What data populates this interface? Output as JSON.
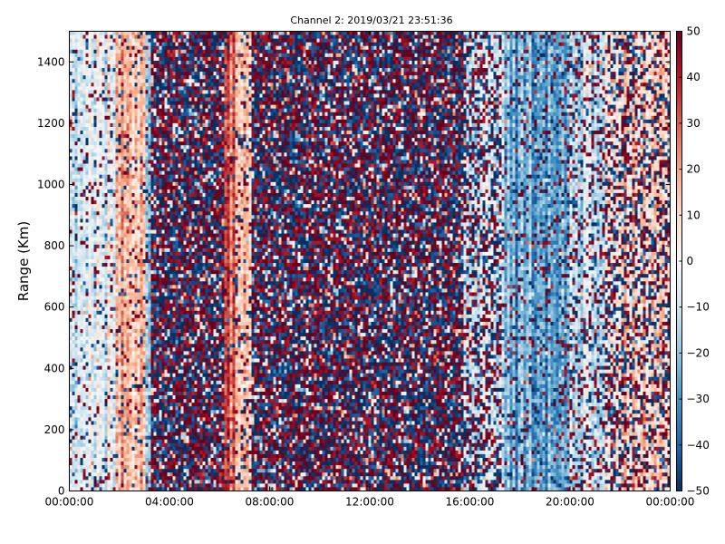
{
  "chart_data": {
    "type": "heatmap",
    "title": "Channel 2: 2019/03/21 23:51:36",
    "xlabel": "",
    "ylabel": "Range (Km)",
    "x_ticks": [
      "00:00:00",
      "04:00:00",
      "08:00:00",
      "12:00:00",
      "16:00:00",
      "20:00:00",
      "00:00:00"
    ],
    "x_range_hours": [
      0,
      24
    ],
    "y_ticks": [
      0,
      200,
      400,
      600,
      800,
      1000,
      1200,
      1400
    ],
    "ylim": [
      0,
      1500
    ],
    "colorbar": {
      "colormap": "RdBu_r",
      "vmin": -50,
      "vmax": 50,
      "ticks": [
        50,
        40,
        30,
        20,
        10,
        0,
        -10,
        -20,
        -30,
        -40,
        -50
      ],
      "colors": [
        "#053061",
        "#2166ac",
        "#4393c3",
        "#92c5de",
        "#d1e5f0",
        "#f7f7f7",
        "#fddbc7",
        "#f4a582",
        "#d6604d",
        "#b2182b",
        "#67001f"
      ]
    },
    "time_bands": [
      {
        "start_hour": 0.0,
        "end_hour": 1.9,
        "mean_value": -8,
        "noise_level": 0.15
      },
      {
        "start_hour": 1.9,
        "end_hour": 3.0,
        "mean_value": 15,
        "noise_level": 0.15
      },
      {
        "start_hour": 3.0,
        "end_hour": 3.25,
        "mean_value": -15,
        "noise_level": 0.2
      },
      {
        "start_hour": 3.25,
        "end_hour": 6.2,
        "mean_value": 0,
        "noise_level": 0.95
      },
      {
        "start_hour": 6.2,
        "end_hour": 6.6,
        "mean_value": 30,
        "noise_level": 0.1
      },
      {
        "start_hour": 6.6,
        "end_hour": 7.3,
        "mean_value": 12,
        "noise_level": 0.25
      },
      {
        "start_hour": 7.3,
        "end_hour": 15.8,
        "mean_value": 0,
        "noise_level": 0.95
      },
      {
        "start_hour": 15.8,
        "end_hour": 17.3,
        "mean_value": -12,
        "noise_level": 0.55
      },
      {
        "start_hour": 17.3,
        "end_hour": 19.9,
        "mean_value": -28,
        "noise_level": 0.2
      },
      {
        "start_hour": 19.9,
        "end_hour": 21.4,
        "mean_value": -12,
        "noise_level": 0.35
      },
      {
        "start_hour": 21.4,
        "end_hour": 24.0,
        "mean_value": 8,
        "noise_level": 0.5
      }
    ]
  }
}
